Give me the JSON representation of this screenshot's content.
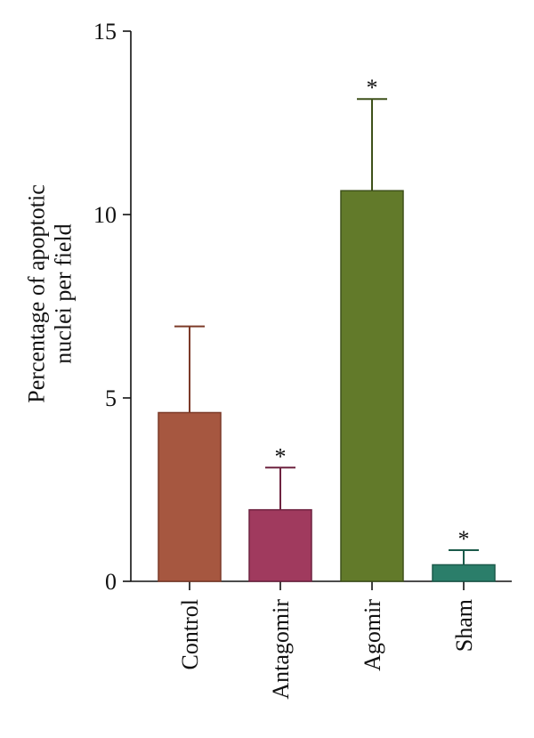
{
  "chart_data": {
    "type": "bar",
    "title": "",
    "xlabel": "",
    "ylabel": [
      "Percentage of apoptotic",
      "nuclei per field"
    ],
    "ylim": [
      0,
      15
    ],
    "yticks": [
      0,
      5,
      10,
      15
    ],
    "categories": [
      "Control",
      "Antagomir",
      "Agomir",
      "Sham"
    ],
    "series": [
      {
        "values": [
          4.6,
          1.95,
          10.65,
          0.45
        ],
        "error_upper": [
          2.35,
          1.15,
          2.5,
          0.4
        ],
        "significance": [
          "",
          "*",
          "*",
          "*"
        ],
        "fill_colors": [
          "#a65740",
          "#a03a5e",
          "#627a2a",
          "#2b7e6a"
        ],
        "stroke_colors": [
          "#7c3a28",
          "#6e2340",
          "#3e511a",
          "#1b5a4a"
        ]
      }
    ],
    "grid": false,
    "legend": "none"
  }
}
